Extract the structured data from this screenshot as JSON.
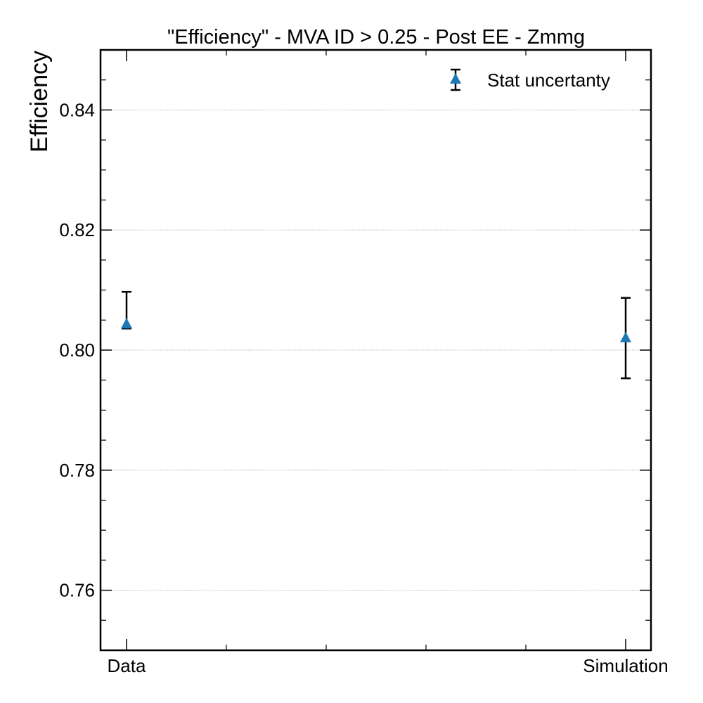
{
  "chart_data": {
    "type": "scatter",
    "title": "\"Efficiency\" - MVA ID > 0.25 - Post EE - Zmmg",
    "xlabel": "",
    "ylabel": "Efficiency",
    "categories": [
      "Data",
      "Simulation"
    ],
    "ylim": [
      0.75,
      0.85
    ],
    "yticks": [
      0.76,
      0.78,
      0.8,
      0.82,
      0.84
    ],
    "ytick_labels": [
      "0.76",
      "0.78",
      "0.80",
      "0.82",
      "0.84"
    ],
    "grid": "horizontal dotted",
    "legend_position": "top-right",
    "series": [
      {
        "name": "Stat uncertanty",
        "marker": "triangle-up",
        "color": "#1f77b4",
        "points": [
          {
            "x": "Data",
            "y": 0.8043,
            "err_low": 0.8087,
            "err_high": 0.8097
          },
          {
            "x": "Simulation",
            "y": 0.802,
            "err_low": 0.7953,
            "err_high": 0.8087
          }
        ]
      }
    ]
  }
}
